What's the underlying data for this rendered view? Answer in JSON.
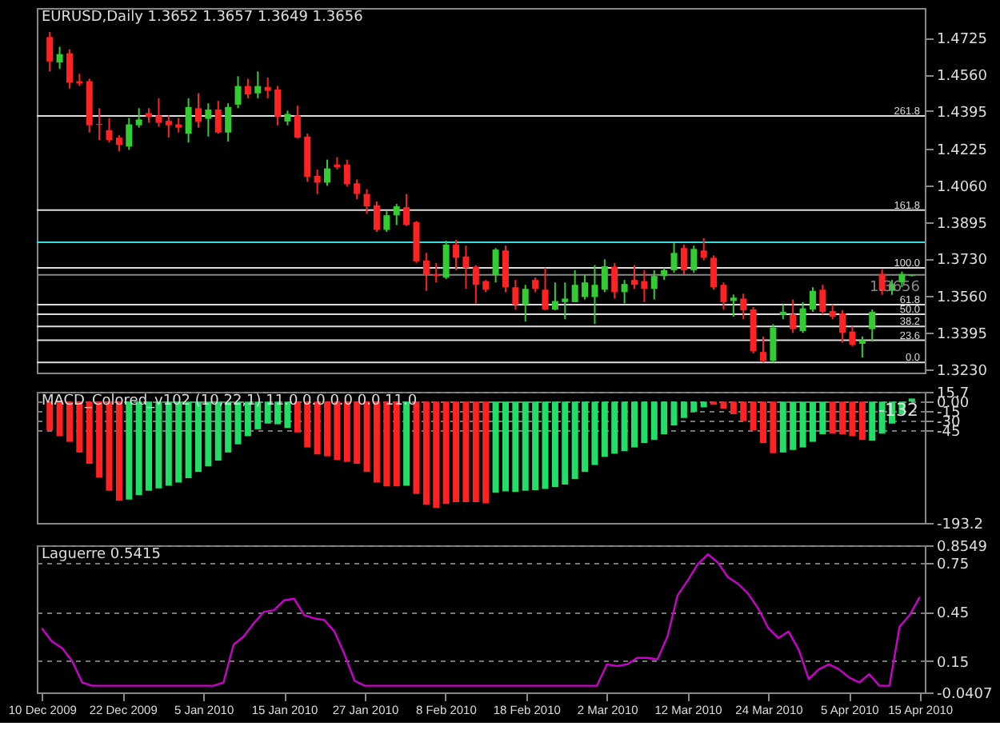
{
  "chart_data": [
    {
      "type": "candlestick",
      "title": "EURUSD,Daily  1.3652 1.3657 1.3649 1.3656",
      "categories": [
        null,
        null,
        null,
        null,
        null,
        null,
        null,
        null,
        null,
        null,
        null,
        null,
        null,
        null,
        null,
        null,
        null,
        null,
        null,
        null,
        null,
        null,
        null,
        null,
        null,
        null,
        null,
        null,
        null,
        null,
        null,
        null,
        null,
        null,
        null,
        null,
        null,
        null,
        null,
        null,
        null,
        null,
        null,
        null,
        null,
        null,
        null,
        null,
        null,
        null,
        null,
        null,
        null,
        null,
        null,
        null,
        null,
        null,
        null,
        null,
        null,
        null,
        null,
        null,
        null,
        null,
        null,
        null,
        null,
        null,
        null,
        null,
        null,
        null,
        null,
        null,
        null,
        null,
        null,
        null,
        null,
        null,
        null,
        null,
        null,
        null,
        null,
        null
      ],
      "ohlc": [
        [
          1.4729,
          1.4752,
          1.4574,
          1.4619
        ],
        [
          1.4614,
          1.4685,
          1.4585,
          1.4652
        ],
        [
          1.4656,
          1.4674,
          1.4497,
          1.4523
        ],
        [
          1.453,
          1.4563,
          1.4508,
          1.4519
        ],
        [
          1.453,
          1.4541,
          1.4298,
          1.4331
        ],
        [
          1.4337,
          1.4408,
          1.4264,
          1.4333
        ],
        [
          1.4309,
          1.4364,
          1.4253,
          1.4264
        ],
        [
          1.4275,
          1.4286,
          1.4213,
          1.4242
        ],
        [
          1.4235,
          1.4364,
          1.422,
          1.4335
        ],
        [
          1.4331,
          1.4408,
          1.432,
          1.4357
        ],
        [
          1.4386,
          1.4408,
          1.4342,
          1.4368
        ],
        [
          1.4375,
          1.4453,
          1.4324,
          1.4342
        ],
        [
          1.4351,
          1.4375,
          1.4275,
          1.4331
        ],
        [
          1.4335,
          1.4364,
          1.4298,
          1.432
        ],
        [
          1.4293,
          1.4453,
          1.4253,
          1.4413
        ],
        [
          1.4408,
          1.4475,
          1.432,
          1.4346
        ],
        [
          1.436,
          1.443,
          1.428,
          1.4402
        ],
        [
          1.4402,
          1.4441,
          1.4293,
          1.4298
        ],
        [
          1.4298,
          1.443,
          1.4258,
          1.4413
        ],
        [
          1.4424,
          1.4552,
          1.4408,
          1.4508
        ],
        [
          1.4508,
          1.4541,
          1.4453,
          1.447
        ],
        [
          1.4475,
          1.4574,
          1.4453,
          1.4508
        ],
        [
          1.4504,
          1.4546,
          1.4453,
          1.4486
        ],
        [
          1.4492,
          1.4508,
          1.4331,
          1.4368
        ],
        [
          1.4348,
          1.4397,
          1.4331,
          1.4382
        ],
        [
          1.4375,
          1.4419,
          1.4271,
          1.4275
        ],
        [
          1.428,
          1.4293,
          1.4076,
          1.4098
        ],
        [
          1.4103,
          1.4131,
          1.4021,
          1.4072
        ],
        [
          1.4072,
          1.4176,
          1.4058,
          1.4136
        ],
        [
          1.4154,
          1.4187,
          1.4131,
          1.4142
        ],
        [
          1.4154,
          1.4176,
          1.4054,
          1.4065
        ],
        [
          1.4069,
          1.4087,
          1.3998,
          1.4021
        ],
        [
          1.4021,
          1.4043,
          1.3932,
          1.3965
        ],
        [
          1.397,
          1.3987,
          1.385,
          1.3859
        ],
        [
          1.3859,
          1.3943,
          1.385,
          1.3925
        ],
        [
          1.3925,
          1.3976,
          1.3881,
          1.3965
        ],
        [
          1.3961,
          1.4021,
          1.3877,
          1.3881
        ],
        [
          1.3894,
          1.3899,
          1.371,
          1.3717
        ],
        [
          1.3721,
          1.3755,
          1.3584,
          1.3655
        ],
        [
          1.3659,
          1.371,
          1.3622,
          1.3651
        ],
        [
          1.3644,
          1.381,
          1.3637,
          1.3792
        ],
        [
          1.3792,
          1.3814,
          1.3677,
          1.3733
        ],
        [
          1.3739,
          1.3788,
          1.3593,
          1.3688
        ],
        [
          1.3693,
          1.37,
          1.3527,
          1.3611
        ],
        [
          1.3628,
          1.3633,
          1.3578,
          1.3589
        ],
        [
          1.3655,
          1.3777,
          1.3622,
          1.377
        ],
        [
          1.3766,
          1.3788,
          1.3578,
          1.36
        ],
        [
          1.36,
          1.3633,
          1.35,
          1.3522
        ],
        [
          1.3522,
          1.3611,
          1.3445,
          1.3593
        ],
        [
          1.3633,
          1.3644,
          1.3578,
          1.3593
        ],
        [
          1.3589,
          1.3688,
          1.3496,
          1.35
        ],
        [
          1.35,
          1.3622,
          1.3496,
          1.3538
        ],
        [
          1.3533,
          1.3622,
          1.3456,
          1.3549
        ],
        [
          1.3533,
          1.3677,
          1.3533,
          1.3611
        ],
        [
          1.3556,
          1.3655,
          1.3545,
          1.3622
        ],
        [
          1.3556,
          1.37,
          1.3434,
          1.3611
        ],
        [
          1.3589,
          1.3726,
          1.3578,
          1.3695
        ],
        [
          1.3693,
          1.371,
          1.3549,
          1.3578
        ],
        [
          1.3578,
          1.3633,
          1.3527,
          1.3615
        ],
        [
          1.3633,
          1.37,
          1.3593,
          1.3611
        ],
        [
          1.3628,
          1.3677,
          1.3533,
          1.3593
        ],
        [
          1.3593,
          1.3677,
          1.3545,
          1.3651
        ],
        [
          1.3651,
          1.3688,
          1.3633,
          1.3677
        ],
        [
          1.3677,
          1.3799,
          1.3666,
          1.3755
        ],
        [
          1.3777,
          1.3792,
          1.3659,
          1.3677
        ],
        [
          1.3677,
          1.3788,
          1.3666,
          1.3773
        ],
        [
          1.3766,
          1.3821,
          1.3722,
          1.3733
        ],
        [
          1.3733,
          1.3744,
          1.3589,
          1.36
        ],
        [
          1.3611,
          1.3622,
          1.35,
          1.3533
        ],
        [
          1.3538,
          1.3567,
          1.3467,
          1.3553
        ],
        [
          1.3549,
          1.3571,
          1.3456,
          1.3496
        ],
        [
          1.35,
          1.3511,
          1.3301,
          1.3312
        ],
        [
          1.3308,
          1.3378,
          1.3261,
          1.3268
        ],
        [
          1.3268,
          1.3434,
          1.3261,
          1.3418
        ],
        [
          1.3474,
          1.3522,
          1.3456,
          1.3489
        ],
        [
          1.3478,
          1.3545,
          1.3394,
          1.3411
        ],
        [
          1.3402,
          1.3533,
          1.3394,
          1.3505
        ],
        [
          1.35,
          1.36,
          1.3489,
          1.3584
        ],
        [
          1.3589,
          1.3611,
          1.3478,
          1.3489
        ],
        [
          1.3493,
          1.3522,
          1.3456,
          1.3467
        ],
        [
          1.3482,
          1.3496,
          1.335,
          1.3394
        ],
        [
          1.34,
          1.3423,
          1.3334,
          1.3341
        ],
        [
          1.3345,
          1.3378,
          1.3283,
          1.3361
        ],
        [
          1.3411,
          1.35,
          1.3356,
          1.3489
        ],
        [
          1.366,
          1.3682,
          1.3566,
          1.3584
        ],
        [
          1.3584,
          1.3633,
          1.3566,
          1.3615
        ],
        [
          1.3622,
          1.3671,
          1.36,
          1.366
        ],
        [
          1.3652,
          1.3657,
          1.3649,
          1.3656
        ]
      ],
      "colors": [
        "#ff2222",
        "#33cc33",
        "#ff2222",
        "#ff2222",
        "#ff2222",
        "#ff2222",
        "#ff2222",
        "#ff2222",
        "#33cc33",
        "#33cc33",
        "#ff2222",
        "#ff2222",
        "#ff2222",
        "#ff2222",
        "#33cc33",
        "#ff2222",
        "#33cc33",
        "#ff2222",
        "#33cc33",
        "#33cc33",
        "#ff2222",
        "#33cc33",
        "#ff2222",
        "#ff2222",
        "#33cc33",
        "#ff2222",
        "#ff2222",
        "#ff2222",
        "#33cc33",
        "#ff2222",
        "#ff2222",
        "#ff2222",
        "#ff2222",
        "#ff2222",
        "#33cc33",
        "#33cc33",
        "#ff2222",
        "#ff2222",
        "#ff2222",
        "#ff2222",
        "#33cc33",
        "#ff2222",
        "#ff2222",
        "#ff2222",
        "#ff2222",
        "#33cc33",
        "#ff2222",
        "#ff2222",
        "#33cc33",
        "#ff2222",
        "#ff2222",
        "#33cc33",
        "#33cc33",
        "#33cc33",
        "#33cc33",
        "#33cc33",
        "#33cc33",
        "#ff2222",
        "#33cc33",
        "#ff2222",
        "#ff2222",
        "#33cc33",
        "#33cc33",
        "#33cc33",
        "#ff2222",
        "#33cc33",
        "#ff2222",
        "#ff2222",
        "#ff2222",
        "#33cc33",
        "#ff2222",
        "#ff2222",
        "#ff2222",
        "#33cc33",
        "#33cc33",
        "#ff2222",
        "#33cc33",
        "#33cc33",
        "#ff2222",
        "#ff2222",
        "#ff2222",
        "#ff2222",
        "#33cc33",
        "#33cc33",
        "#ff2222",
        "#33cc33",
        "#33cc33",
        "#33cc33"
      ],
      "ylim": [
        1.3215,
        1.486
      ],
      "yticks": [
        1.4725,
        {
          "value": 1.456,
          "label": "1.4560"
        },
        1.4395,
        1.4225,
        {
          "value": 1.406,
          "label": "1.4060"
        },
        1.3895,
        {
          "value": 1.373,
          "label": "1.3730"
        },
        {
          "value": 1.356,
          "label": "1.3560"
        },
        1.3395,
        {
          "value": 1.323,
          "label": "1.3230"
        }
      ],
      "annotations": [
        {
          "text": "261.8",
          "y": 1.4373
        },
        {
          "text": "161.8",
          "y": 1.3948
        },
        {
          "text": "100.0",
          "y": 1.3688
        },
        {
          "text": "61.8",
          "y": 1.3522
        },
        {
          "text": "50.0",
          "y": 1.3478
        },
        {
          "text": "38.2",
          "y": 1.3423
        },
        {
          "text": "23.6",
          "y": 1.3361
        },
        {
          "text": "0.0",
          "y": 1.3261
        }
      ],
      "ref_lines": [
        {
          "axis": "y",
          "value": 1.4373,
          "color": "#dddddd"
        },
        {
          "axis": "y",
          "value": 1.3948,
          "color": "#dddddd"
        },
        {
          "axis": "y",
          "value": 1.3688,
          "color": "#dddddd"
        },
        {
          "axis": "y",
          "value": 1.3522,
          "color": "#dddddd"
        },
        {
          "axis": "y",
          "value": 1.3478,
          "color": "#dddddd"
        },
        {
          "axis": "y",
          "value": 1.3423,
          "color": "#dddddd"
        },
        {
          "axis": "y",
          "value": 1.3361,
          "color": "#dddddd"
        },
        {
          "axis": "y",
          "value": 1.3261,
          "color": "#dddddd"
        },
        {
          "axis": "y",
          "value": 1.3803,
          "color": "#33dddd"
        },
        {
          "axis": "y",
          "value": 1.3656,
          "label": "1.3656",
          "color": "#888888"
        }
      ],
      "grid": false,
      "tick_labels": "y"
    },
    {
      "type": "bar",
      "title": "MACD_Colored_v102 (10,22,1) 11.0 0.0 0.0 0.0 11.0",
      "categories": [
        null,
        null,
        null,
        null,
        null,
        null,
        null,
        null,
        null,
        null,
        null,
        null,
        null,
        null,
        null,
        null,
        null,
        null,
        null,
        null,
        null,
        null,
        null,
        null,
        null,
        null,
        null,
        null,
        null,
        null,
        null,
        null,
        null,
        null,
        null,
        null,
        null,
        null,
        null,
        null,
        null,
        null,
        null,
        null,
        null,
        null,
        null,
        null,
        null,
        null,
        null,
        null,
        null,
        null,
        null,
        null,
        null,
        null,
        null,
        null,
        null,
        null,
        null,
        null,
        null,
        null,
        null,
        null,
        null,
        null,
        null,
        null,
        null,
        null,
        null,
        null,
        null,
        null,
        null,
        null,
        null,
        null,
        null,
        null,
        null,
        null,
        null,
        null
      ],
      "values": [
        -46,
        -55,
        -64,
        -81,
        -99,
        -121,
        -142,
        -158,
        -156,
        -149,
        -142,
        -138,
        -134,
        -129,
        -122,
        -112,
        -103,
        -94,
        -81,
        -68,
        -55,
        -44,
        -35,
        -36,
        -42,
        -49,
        -73,
        -84,
        -87,
        -93,
        -96,
        -99,
        -112,
        -129,
        -135,
        -135,
        -134,
        -147,
        -164,
        -169,
        -163,
        -160,
        -160,
        -160,
        -162,
        -145,
        -143,
        -144,
        -142,
        -141,
        -139,
        -136,
        -132,
        -123,
        -112,
        -101,
        -88,
        -83,
        -79,
        -73,
        -66,
        -61,
        -52,
        -38,
        -26,
        -16,
        -9,
        -5,
        -11,
        -20,
        -31,
        -46,
        -66,
        -82,
        -81,
        -77,
        -73,
        -64,
        -52,
        -51,
        -52,
        -55,
        -61,
        -62,
        -51,
        -35,
        -20,
        5
      ],
      "colors": [
        "#ff2222",
        "#ff2222",
        "#ff2222",
        "#ff2222",
        "#ff2222",
        "#ff2222",
        "#ff2222",
        "#ff2222",
        "#22dd66",
        "#22dd66",
        "#22dd66",
        "#22dd66",
        "#22dd66",
        "#22dd66",
        "#22dd66",
        "#22dd66",
        "#22dd66",
        "#22dd66",
        "#22dd66",
        "#22dd66",
        "#22dd66",
        "#22dd66",
        "#22dd66",
        "#22dd66",
        "#22dd66",
        "#ff2222",
        "#ff2222",
        "#ff2222",
        "#ff2222",
        "#ff2222",
        "#ff2222",
        "#ff2222",
        "#ff2222",
        "#ff2222",
        "#ff2222",
        "#ff2222",
        "#22dd66",
        "#ff2222",
        "#ff2222",
        "#ff2222",
        "#ff2222",
        "#ff2222",
        "#ff2222",
        "#ff2222",
        "#ff2222",
        "#22dd66",
        "#22dd66",
        "#22dd66",
        "#22dd66",
        "#22dd66",
        "#22dd66",
        "#22dd66",
        "#22dd66",
        "#22dd66",
        "#22dd66",
        "#22dd66",
        "#22dd66",
        "#22dd66",
        "#22dd66",
        "#22dd66",
        "#22dd66",
        "#22dd66",
        "#22dd66",
        "#22dd66",
        "#22dd66",
        "#22dd66",
        "#22dd66",
        "#ff2222",
        "#ff2222",
        "#ff2222",
        "#ff2222",
        "#ff2222",
        "#ff2222",
        "#ff2222",
        "#22dd66",
        "#22dd66",
        "#22dd66",
        "#22dd66",
        "#22dd66",
        "#ff2222",
        "#ff2222",
        "#ff2222",
        "#ff2222",
        "#22dd66",
        "#22dd66",
        "#22dd66",
        "#22dd66",
        "#22dd66"
      ],
      "ylim": [
        -193.2,
        15.7
      ],
      "yticks": [
        15.7,
        {
          "value": 0,
          "label": "0.00"
        },
        -15,
        -30,
        -45,
        -193.2
      ],
      "grid": "y",
      "tick_labels": "y",
      "annotations": [
        "-132"
      ]
    },
    {
      "type": "line",
      "title": "Laguerre 0.5415",
      "categories": [
        "10 Dec 2009",
        null,
        null,
        null,
        null,
        null,
        null,
        null,
        "22 Dec 2009",
        null,
        null,
        null,
        null,
        null,
        null,
        null,
        "5 Jan 2010",
        null,
        null,
        null,
        null,
        null,
        null,
        null,
        "15 Jan 2010",
        null,
        null,
        null,
        null,
        null,
        null,
        null,
        "27 Jan 2010",
        null,
        null,
        null,
        null,
        null,
        null,
        null,
        "8 Feb 2010",
        null,
        null,
        null,
        null,
        null,
        null,
        null,
        "18 Feb 2010",
        null,
        null,
        null,
        null,
        null,
        null,
        null,
        "2 Mar 2010",
        null,
        null,
        null,
        null,
        null,
        null,
        null,
        "12 Mar 2010",
        null,
        null,
        null,
        null,
        null,
        null,
        null,
        "24 Mar 2010",
        null,
        null,
        null,
        null,
        null,
        null,
        null,
        "5 Apr 2010",
        null,
        null,
        null,
        null,
        null,
        null,
        "15 Apr 2010"
      ],
      "series": [
        {
          "color": "#cc00cc",
          "values": [
            0.35,
            0.27,
            0.23,
            0.15,
            0.02,
            0,
            0,
            0,
            0,
            0,
            0,
            0,
            0,
            0,
            0,
            0,
            0,
            0,
            0.02,
            0.25,
            0.3,
            0.38,
            0.45,
            0.46,
            0.52,
            0.53,
            0.43,
            0.41,
            0.4,
            0.33,
            0.19,
            0.03,
            0,
            0,
            0,
            0,
            0,
            0,
            0,
            0,
            0,
            0,
            0,
            0,
            0,
            0,
            0,
            0,
            0,
            0,
            0,
            0,
            0,
            0,
            0,
            0,
            0.13,
            0.12,
            0.13,
            0.17,
            0.17,
            0.16,
            0.3,
            0.55,
            0.64,
            0.74,
            0.8,
            0.75,
            0.66,
            0.62,
            0.56,
            0.47,
            0.35,
            0.29,
            0.33,
            0.22,
            0.04,
            0.1,
            0.13,
            0.1,
            0.05,
            0.02,
            0.07,
            0,
            0,
            0.36,
            0.43,
            0.54
          ]
        }
      ],
      "ylim": [
        -0.0407,
        0.8549
      ],
      "yticks": [
        0.8549,
        0.75,
        0.45,
        0.15,
        -0.0407
      ],
      "grid": "y"
    }
  ]
}
